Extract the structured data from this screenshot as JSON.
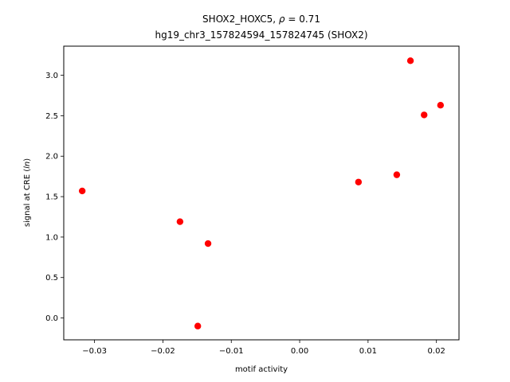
{
  "chart_data": {
    "type": "scatter",
    "title_line1": "SHOX2_HOXC5, ρ = 0.71",
    "title_line2": "hg19_chr3_157824594_157824745 (SHOX2)",
    "xlabel": "motif activity",
    "ylabel": "signal at CRE (ln)",
    "xlim": [
      -0.0345,
      0.0233
    ],
    "ylim": [
      -0.27,
      3.36
    ],
    "xticks": [
      -0.03,
      -0.02,
      -0.01,
      0.0,
      0.01,
      0.02
    ],
    "xtick_labels": [
      "−0.03",
      "−0.02",
      "−0.01",
      "0.00",
      "0.01",
      "0.02"
    ],
    "yticks": [
      0.0,
      0.5,
      1.0,
      1.5,
      2.0,
      2.5,
      3.0
    ],
    "ytick_labels": [
      "0.0",
      "0.5",
      "1.0",
      "1.5",
      "2.0",
      "2.5",
      "3.0"
    ],
    "marker_color": "#ff0000",
    "grid": false,
    "points": [
      {
        "x": -0.0318,
        "y": 1.57
      },
      {
        "x": -0.0175,
        "y": 1.19
      },
      {
        "x": -0.0134,
        "y": 0.92
      },
      {
        "x": -0.0149,
        "y": -0.1
      },
      {
        "x": 0.0086,
        "y": 1.68
      },
      {
        "x": 0.0142,
        "y": 1.77
      },
      {
        "x": 0.0162,
        "y": 3.18
      },
      {
        "x": 0.0182,
        "y": 2.51
      },
      {
        "x": 0.0206,
        "y": 2.63
      }
    ]
  }
}
